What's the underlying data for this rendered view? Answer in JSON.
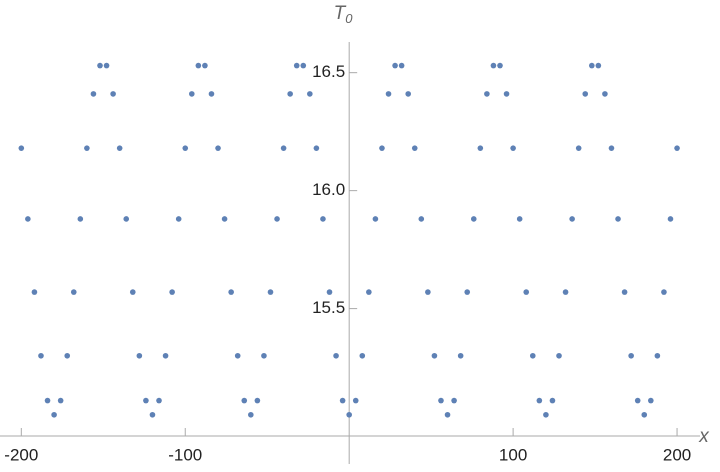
{
  "chart_data": {
    "type": "scatter",
    "xlabel": "x",
    "ylabel": {
      "base": "T",
      "sub": "0"
    },
    "xlim": [
      -213,
      214
    ],
    "ylim": [
      14.96,
      16.63
    ],
    "xticks": [
      -200,
      -100,
      100,
      200
    ],
    "yticks": [
      15.5,
      {
        "value": 16,
        "label": "16.0"
      },
      16.5
    ],
    "series": [
      {
        "color": "#5e81b5",
        "x": [
          -200,
          -196,
          -192,
          -188,
          -184,
          -180,
          -176,
          -172,
          -168,
          -164,
          -160,
          -156,
          -152,
          -148,
          -144,
          -140,
          -136,
          -132,
          -128,
          -124,
          -120,
          -116,
          -112,
          -108,
          -104,
          -100,
          -96,
          -92,
          -88,
          -84,
          -80,
          -76,
          -72,
          -68,
          -64,
          -60,
          -56,
          -52,
          -48,
          -44,
          -40,
          -36,
          -32,
          -28,
          -24,
          -20,
          -16,
          -12,
          -8,
          -4,
          0,
          4,
          8,
          12,
          16,
          20,
          24,
          28,
          32,
          36,
          40,
          44,
          48,
          52,
          56,
          60,
          64,
          68,
          72,
          76,
          80,
          84,
          88,
          92,
          96,
          100,
          104,
          108,
          112,
          116,
          120,
          124,
          128,
          132,
          136,
          140,
          144,
          148,
          152,
          156,
          160,
          164,
          168,
          172,
          176,
          180,
          184,
          188,
          192,
          196,
          200
        ],
        "values": [
          16.18,
          15.88,
          15.57,
          15.3,
          15.11,
          15.05,
          15.11,
          15.3,
          15.57,
          15.88,
          16.18,
          16.41,
          16.53,
          16.53,
          16.41,
          16.18,
          15.88,
          15.57,
          15.3,
          15.11,
          15.05,
          15.11,
          15.3,
          15.57,
          15.88,
          16.18,
          16.41,
          16.53,
          16.53,
          16.41,
          16.18,
          15.88,
          15.57,
          15.3,
          15.11,
          15.05,
          15.11,
          15.3,
          15.57,
          15.88,
          16.18,
          16.41,
          16.53,
          16.53,
          16.41,
          16.18,
          15.88,
          15.57,
          15.3,
          15.11,
          15.05,
          15.11,
          15.3,
          15.57,
          15.88,
          16.18,
          16.41,
          16.53,
          16.53,
          16.41,
          16.18,
          15.88,
          15.57,
          15.3,
          15.11,
          15.05,
          15.11,
          15.3,
          15.57,
          15.88,
          16.18,
          16.41,
          16.53,
          16.53,
          16.41,
          16.18,
          15.88,
          15.57,
          15.3,
          15.11,
          15.05,
          15.11,
          15.3,
          15.57,
          15.88,
          16.18,
          16.41,
          16.53,
          16.53,
          16.41,
          16.18,
          15.88,
          15.57,
          15.3,
          15.11,
          15.05,
          15.11,
          15.3,
          15.57,
          15.88,
          16.18
        ]
      }
    ]
  }
}
